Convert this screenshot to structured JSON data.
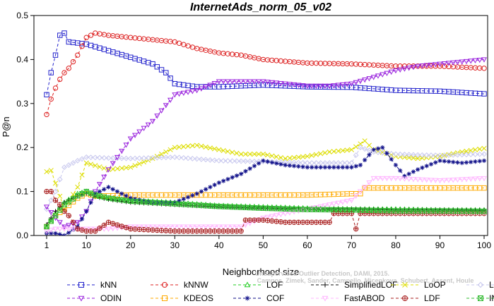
{
  "chart_data": {
    "type": "line",
    "title": "InternetAds_norm_05_v02",
    "xlabel": "Neighborhood size",
    "ylabel": "P@n",
    "xlim": [
      1,
      100
    ],
    "ylim": [
      0,
      0.5
    ],
    "xticks": [
      1,
      10,
      20,
      30,
      40,
      50,
      60,
      70,
      80,
      90,
      100
    ],
    "yticks": [
      0.0,
      0.1,
      0.2,
      0.3,
      0.4,
      0.5
    ],
    "grid": false,
    "legend_position": "bottom",
    "credit_lines": [
      "Unsupervised Outlier Detection, DAMI, 2015.",
      "Campos, Zimek, Sander, Campello, Micenkova, Schubert, Assent, Houle"
    ],
    "series": [
      {
        "name": "kNN",
        "color": "#2222cc",
        "marker": "square",
        "x": [
          1,
          2,
          3,
          4,
          5,
          6,
          10,
          15,
          20,
          25,
          28,
          30,
          35,
          40,
          50,
          60,
          70,
          80,
          90,
          100
        ],
        "y": [
          0.32,
          0.37,
          0.41,
          0.455,
          0.46,
          0.44,
          0.435,
          0.42,
          0.405,
          0.39,
          0.37,
          0.345,
          0.338,
          0.338,
          0.342,
          0.338,
          0.337,
          0.33,
          0.328,
          0.322
        ]
      },
      {
        "name": "kNNW",
        "color": "#dd2222",
        "marker": "circle",
        "x": [
          1,
          2,
          3,
          4,
          5,
          6,
          8,
          10,
          12,
          15,
          20,
          25,
          30,
          35,
          40,
          45,
          50,
          60,
          70,
          80,
          90,
          100
        ],
        "y": [
          0.275,
          0.31,
          0.335,
          0.355,
          0.37,
          0.38,
          0.41,
          0.45,
          0.46,
          0.455,
          0.45,
          0.445,
          0.44,
          0.425,
          0.415,
          0.41,
          0.4,
          0.392,
          0.39,
          0.385,
          0.385,
          0.38
        ]
      },
      {
        "name": "LOF",
        "color": "#22cc22",
        "marker": "triangle-up",
        "x": [
          1,
          3,
          5,
          8,
          10,
          12,
          15,
          20,
          30,
          40,
          50,
          60,
          70,
          80,
          90,
          100
        ],
        "y": [
          0.02,
          0.05,
          0.075,
          0.095,
          0.1,
          0.09,
          0.085,
          0.08,
          0.075,
          0.068,
          0.065,
          0.062,
          0.06,
          0.06,
          0.058,
          0.058
        ]
      },
      {
        "name": "SimplifiedLOF",
        "color": "#111111",
        "marker": "plus",
        "x": [
          1,
          3,
          5,
          8,
          10,
          12,
          15,
          20,
          30,
          40,
          50,
          60,
          70,
          80,
          90,
          100
        ],
        "y": [
          0.025,
          0.055,
          0.075,
          0.09,
          0.095,
          0.088,
          0.082,
          0.075,
          0.07,
          0.065,
          0.062,
          0.06,
          0.06,
          0.058,
          0.058,
          0.057
        ]
      },
      {
        "name": "LoOP",
        "color": "#dddd00",
        "marker": "x",
        "x": [
          1,
          2,
          5,
          8,
          10,
          15,
          20,
          25,
          30,
          35,
          40,
          45,
          50,
          55,
          60,
          65,
          70,
          73,
          75,
          80,
          85,
          90,
          95,
          100
        ],
        "y": [
          0.145,
          0.148,
          0.06,
          0.11,
          0.165,
          0.15,
          0.155,
          0.175,
          0.2,
          0.205,
          0.195,
          0.185,
          0.185,
          0.175,
          0.18,
          0.19,
          0.195,
          0.215,
          0.195,
          0.18,
          0.175,
          0.18,
          0.19,
          0.198
        ]
      },
      {
        "name": "LDOF",
        "color": "#c8c8ee",
        "marker": "diamond",
        "x": [
          1,
          3,
          5,
          8,
          10,
          15,
          20,
          30,
          40,
          50,
          60,
          70,
          72,
          75,
          80,
          85,
          90,
          100
        ],
        "y": [
          0.06,
          0.1,
          0.155,
          0.17,
          0.178,
          0.176,
          0.175,
          0.178,
          0.17,
          0.168,
          0.165,
          0.165,
          0.2,
          0.19,
          0.185,
          0.183,
          0.182,
          0.185
        ]
      },
      {
        "name": "ODIN",
        "color": "#9922dd",
        "marker": "triangle-down",
        "x": [
          1,
          3,
          5,
          8,
          10,
          12,
          15,
          20,
          25,
          30,
          35,
          40,
          45,
          50,
          55,
          60,
          65,
          70,
          75,
          80,
          85,
          90,
          95,
          100
        ],
        "y": [
          0.065,
          0.04,
          0.02,
          0.03,
          0.055,
          0.1,
          0.15,
          0.22,
          0.26,
          0.32,
          0.33,
          0.35,
          0.35,
          0.35,
          0.345,
          0.34,
          0.34,
          0.345,
          0.36,
          0.375,
          0.385,
          0.39,
          0.395,
          0.4
        ]
      },
      {
        "name": "KDEOS",
        "color": "#ffaa00",
        "marker": "square",
        "x": [
          1,
          3,
          5,
          8,
          10,
          12,
          15,
          20,
          30,
          40,
          50,
          60,
          70,
          72,
          73,
          80,
          90,
          100
        ],
        "y": [
          0.02,
          0.045,
          0.06,
          0.085,
          0.095,
          0.09,
          0.09,
          0.092,
          0.092,
          0.092,
          0.092,
          0.092,
          0.095,
          0.095,
          0.108,
          0.108,
          0.108,
          0.108
        ]
      },
      {
        "name": "COF",
        "color": "#11118a",
        "marker": "star",
        "x": [
          1,
          3,
          5,
          8,
          10,
          12,
          15,
          20,
          25,
          30,
          35,
          40,
          45,
          50,
          55,
          60,
          65,
          70,
          72,
          75,
          77,
          80,
          82,
          85,
          90,
          95,
          100
        ],
        "y": [
          0.005,
          0.005,
          0.0,
          0.02,
          0.055,
          0.095,
          0.11,
          0.085,
          0.075,
          0.075,
          0.095,
          0.12,
          0.14,
          0.17,
          0.16,
          0.155,
          0.155,
          0.155,
          0.16,
          0.195,
          0.2,
          0.16,
          0.135,
          0.15,
          0.17,
          0.165,
          0.17
        ]
      },
      {
        "name": "FastABOD",
        "color": "#ffb4ff",
        "marker": "triangle-down",
        "x": [
          1,
          3,
          5,
          8,
          10,
          15,
          20,
          30,
          40,
          45,
          50,
          60,
          70,
          72,
          75,
          80,
          90,
          100
        ],
        "y": [
          0.01,
          0.015,
          0.015,
          0.015,
          0.015,
          0.015,
          0.02,
          0.02,
          0.02,
          0.02,
          0.04,
          0.06,
          0.08,
          0.1,
          0.13,
          0.13,
          0.125,
          0.13
        ]
      },
      {
        "name": "LDF",
        "color": "#aa2222",
        "marker": "circle-plus",
        "x": [
          1,
          2,
          3,
          4,
          5,
          6,
          8,
          10,
          12,
          15,
          20,
          30,
          40,
          45,
          46,
          50,
          55,
          56,
          60,
          65,
          66,
          70,
          71,
          72,
          73,
          80,
          90,
          100
        ],
        "y": [
          0.1,
          0.1,
          0.08,
          0.07,
          0.055,
          0.045,
          0.015,
          0.01,
          0.01,
          0.03,
          0.015,
          0.01,
          0.01,
          0.01,
          0.035,
          0.035,
          0.03,
          0.03,
          0.03,
          0.03,
          0.05,
          0.05,
          0.015,
          0.05,
          0.05,
          0.05,
          0.05,
          0.05
        ]
      },
      {
        "name": "INFLO",
        "color": "#33bb33",
        "marker": "square-x",
        "x": [
          1,
          3,
          5,
          8,
          10,
          12,
          15,
          20,
          30,
          40,
          50,
          60,
          70,
          80,
          90,
          100
        ],
        "y": [
          0.02,
          0.045,
          0.07,
          0.09,
          0.1,
          0.092,
          0.085,
          0.078,
          0.072,
          0.066,
          0.062,
          0.059,
          0.058,
          0.056,
          0.056,
          0.055
        ]
      }
    ]
  }
}
